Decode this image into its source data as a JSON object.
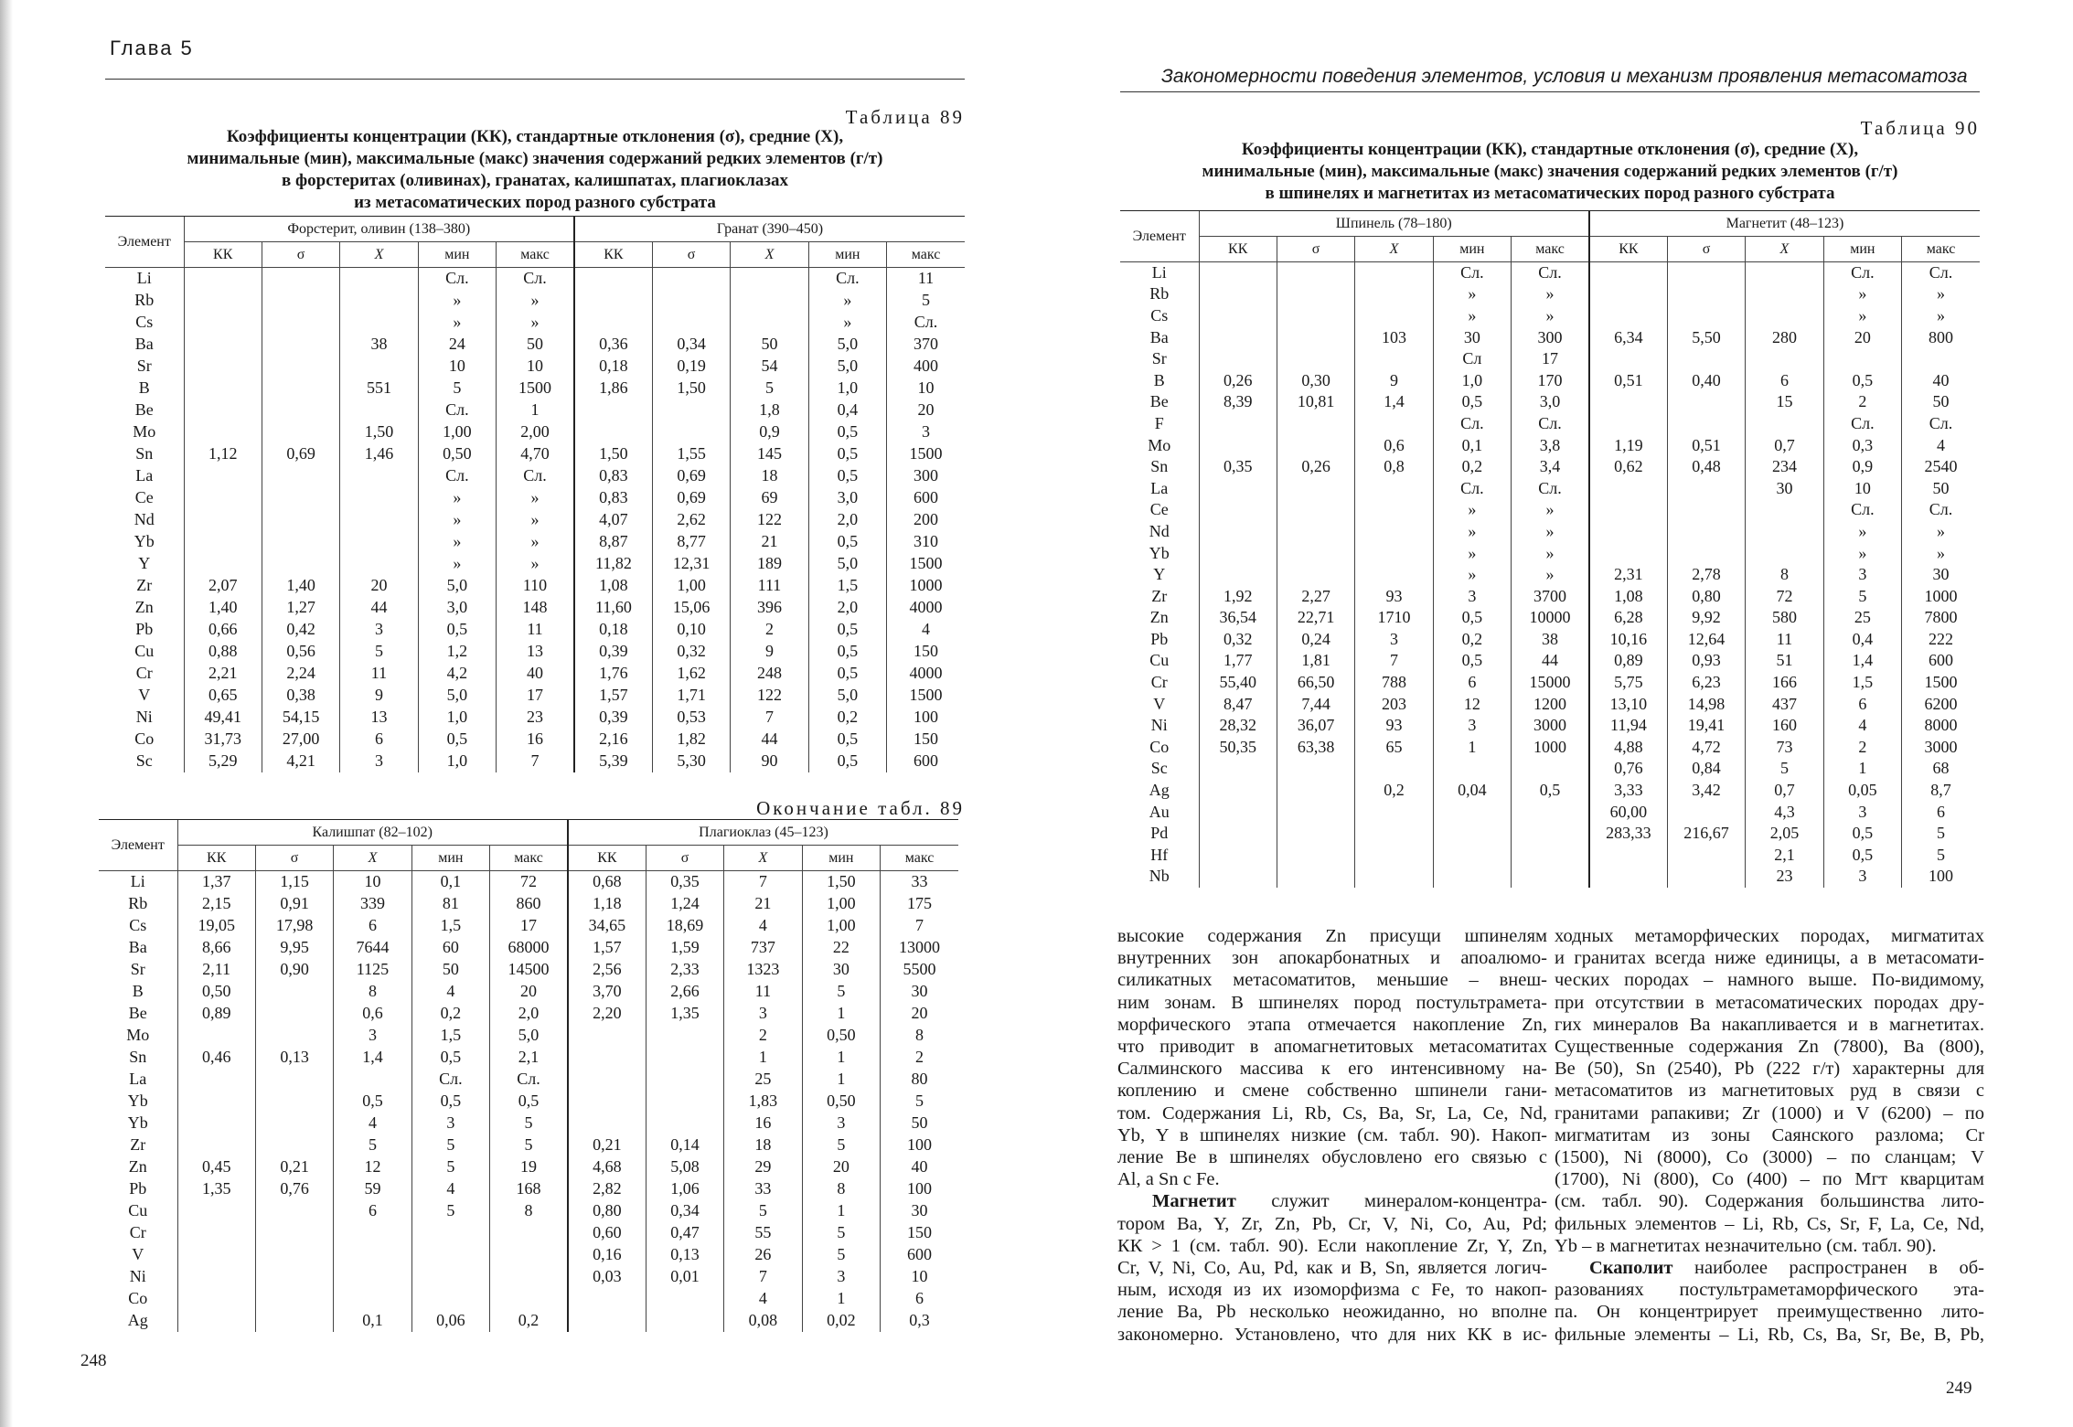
{
  "left_page": {
    "running_head": "Глава 5",
    "page_number": "248",
    "table89": {
      "caption": "Таблица 89",
      "title_lines": [
        "Коэффициенты концентрации (КК), стандартные отклонения (σ), средние (X),",
        "минимальные (мин), максимальные (макс) значения содержаний редких элементов (г/т)",
        "в форстеритах (оливинах), гранатах, калишпатах, плагиоклазах",
        "из метасоматических пород разного субстрата"
      ],
      "element_header": "Элемент",
      "groups": [
        "Форстерит, оливин (138–380)",
        "Гранат (390–450)"
      ],
      "subheaders": [
        "КК",
        "σ",
        "X",
        "мин",
        "макс"
      ],
      "rows": [
        [
          "Li",
          "",
          "",
          "",
          "Сл.",
          "Сл.",
          "",
          "",
          "",
          "Сл.",
          "11"
        ],
        [
          "Rb",
          "",
          "",
          "",
          "»",
          "»",
          "",
          "",
          "",
          "»",
          "5"
        ],
        [
          "Cs",
          "",
          "",
          "",
          "»",
          "»",
          "",
          "",
          "",
          "»",
          "Сл."
        ],
        [
          "Ba",
          "",
          "",
          "38",
          "24",
          "50",
          "0,36",
          "0,34",
          "50",
          "5,0",
          "370"
        ],
        [
          "Sr",
          "",
          "",
          "",
          "10",
          "10",
          "0,18",
          "0,19",
          "54",
          "5,0",
          "400"
        ],
        [
          "B",
          "",
          "",
          "551",
          "5",
          "1500",
          "1,86",
          "1,50",
          "5",
          "1,0",
          "10"
        ],
        [
          "Be",
          "",
          "",
          "",
          "Сл.",
          "1",
          "",
          "",
          "1,8",
          "0,4",
          "20"
        ],
        [
          "Mo",
          "",
          "",
          "1,50",
          "1,00",
          "2,00",
          "",
          "",
          "0,9",
          "0,5",
          "3"
        ],
        [
          "Sn",
          "1,12",
          "0,69",
          "1,46",
          "0,50",
          "4,70",
          "1,50",
          "1,55",
          "145",
          "0,5",
          "1500"
        ],
        [
          "La",
          "",
          "",
          "",
          "Сл.",
          "Сл.",
          "0,83",
          "0,69",
          "18",
          "0,5",
          "300"
        ],
        [
          "Ce",
          "",
          "",
          "",
          "»",
          "»",
          "0,83",
          "0,69",
          "69",
          "3,0",
          "600"
        ],
        [
          "Nd",
          "",
          "",
          "",
          "»",
          "»",
          "4,07",
          "2,62",
          "122",
          "2,0",
          "200"
        ],
        [
          "Yb",
          "",
          "",
          "",
          "»",
          "»",
          "8,87",
          "8,77",
          "21",
          "0,5",
          "310"
        ],
        [
          "Y",
          "",
          "",
          "",
          "»",
          "»",
          "11,82",
          "12,31",
          "189",
          "5,0",
          "1500"
        ],
        [
          "Zr",
          "2,07",
          "1,40",
          "20",
          "5,0",
          "110",
          "1,08",
          "1,00",
          "111",
          "1,5",
          "1000"
        ],
        [
          "Zn",
          "1,40",
          "1,27",
          "44",
          "3,0",
          "148",
          "11,60",
          "15,06",
          "396",
          "2,0",
          "4000"
        ],
        [
          "Pb",
          "0,66",
          "0,42",
          "3",
          "0,5",
          "11",
          "0,18",
          "0,10",
          "2",
          "0,5",
          "4"
        ],
        [
          "Cu",
          "0,88",
          "0,56",
          "5",
          "1,2",
          "13",
          "0,39",
          "0,32",
          "9",
          "0,5",
          "150"
        ],
        [
          "Cr",
          "2,21",
          "2,24",
          "11",
          "4,2",
          "40",
          "1,76",
          "1,62",
          "248",
          "0,5",
          "4000"
        ],
        [
          "V",
          "0,65",
          "0,38",
          "9",
          "5,0",
          "17",
          "1,57",
          "1,71",
          "122",
          "5,0",
          "1500"
        ],
        [
          "Ni",
          "49,41",
          "54,15",
          "13",
          "1,0",
          "23",
          "0,39",
          "0,53",
          "7",
          "0,2",
          "100"
        ],
        [
          "Co",
          "31,73",
          "27,00",
          "6",
          "0,5",
          "16",
          "2,16",
          "1,82",
          "44",
          "0,5",
          "150"
        ],
        [
          "Sc",
          "5,29",
          "4,21",
          "3",
          "1,0",
          "7",
          "5,39",
          "5,30",
          "90",
          "0,5",
          "600"
        ]
      ]
    },
    "table89_end": {
      "caption": "Окончание табл. 89",
      "element_header": "Элемент",
      "groups": [
        "Калишпат (82–102)",
        "Плагиоклаз (45–123)"
      ],
      "subheaders": [
        "КК",
        "σ",
        "X",
        "мин",
        "макс"
      ],
      "rows": [
        [
          "Li",
          "1,37",
          "1,15",
          "10",
          "0,1",
          "72",
          "0,68",
          "0,35",
          "7",
          "1,50",
          "33"
        ],
        [
          "Rb",
          "2,15",
          "0,91",
          "339",
          "81",
          "860",
          "1,18",
          "1,24",
          "21",
          "1,00",
          "175"
        ],
        [
          "Cs",
          "19,05",
          "17,98",
          "6",
          "1,5",
          "17",
          "34,65",
          "18,69",
          "4",
          "1,00",
          "7"
        ],
        [
          "Ba",
          "8,66",
          "9,95",
          "7644",
          "60",
          "68000",
          "1,57",
          "1,59",
          "737",
          "22",
          "13000"
        ],
        [
          "Sr",
          "2,11",
          "0,90",
          "1125",
          "50",
          "14500",
          "2,56",
          "2,33",
          "1323",
          "30",
          "5500"
        ],
        [
          "B",
          "0,50",
          "",
          "8",
          "4",
          "20",
          "3,70",
          "2,66",
          "11",
          "5",
          "30"
        ],
        [
          "Be",
          "0,89",
          "",
          "0,6",
          "0,2",
          "2,0",
          "2,20",
          "1,35",
          "3",
          "1",
          "20"
        ],
        [
          "Mo",
          "",
          "",
          "3",
          "1,5",
          "5,0",
          "",
          "",
          "2",
          "0,50",
          "8"
        ],
        [
          "Sn",
          "0,46",
          "0,13",
          "1,4",
          "0,5",
          "2,1",
          "",
          "",
          "1",
          "1",
          "2"
        ],
        [
          "La",
          "",
          "",
          "",
          "Сл.",
          "Сл.",
          "",
          "",
          "25",
          "1",
          "80"
        ],
        [
          "Yb",
          "",
          "",
          "0,5",
          "0,5",
          "0,5",
          "",
          "",
          "1,83",
          "0,50",
          "5"
        ],
        [
          "Yb",
          "",
          "",
          "4",
          "3",
          "5",
          "",
          "",
          "16",
          "3",
          "50"
        ],
        [
          "Zr",
          "",
          "",
          "5",
          "5",
          "5",
          "0,21",
          "0,14",
          "18",
          "5",
          "100"
        ],
        [
          "Zn",
          "0,45",
          "0,21",
          "12",
          "5",
          "19",
          "4,68",
          "5,08",
          "29",
          "20",
          "40"
        ],
        [
          "Pb",
          "1,35",
          "0,76",
          "59",
          "4",
          "168",
          "2,82",
          "1,06",
          "33",
          "8",
          "100"
        ],
        [
          "Cu",
          "",
          "",
          "6",
          "5",
          "8",
          "0,80",
          "0,34",
          "5",
          "1",
          "30"
        ],
        [
          "Cr",
          "",
          "",
          "",
          "",
          "",
          "0,60",
          "0,47",
          "55",
          "5",
          "150"
        ],
        [
          "V",
          "",
          "",
          "",
          "",
          "",
          "0,16",
          "0,13",
          "26",
          "5",
          "600"
        ],
        [
          "Ni",
          "",
          "",
          "",
          "",
          "",
          "0,03",
          "0,01",
          "7",
          "3",
          "10"
        ],
        [
          "Co",
          "",
          "",
          "",
          "",
          "",
          "",
          "",
          "4",
          "1",
          "6"
        ],
        [
          "Ag",
          "",
          "",
          "0,1",
          "0,06",
          "0,2",
          "",
          "",
          "0,08",
          "0,02",
          "0,3"
        ]
      ]
    }
  },
  "right_page": {
    "running_head": "Закономерности поведения элементов, условия и механизм проявления метасоматоза",
    "page_number": "249",
    "table90": {
      "caption": "Таблица 90",
      "title_lines": [
        "Коэффициенты концентрации (КК), стандартные отклонения (σ), средние (X),",
        "минимальные (мин), максимальные (макс) значения содержаний редких элементов (г/т)",
        "в шпинелях и магнетитах из метасоматических пород разного субстрата"
      ],
      "element_header": "Элемент",
      "groups": [
        "Шпинель (78–180)",
        "Магнетит (48–123)"
      ],
      "subheaders": [
        "КК",
        "σ",
        "X",
        "мин",
        "макс"
      ],
      "rows": [
        [
          "Li",
          "",
          "",
          "",
          "Сл.",
          "Сл.",
          "",
          "",
          "",
          "Сл.",
          "Сл."
        ],
        [
          "Rb",
          "",
          "",
          "",
          "»",
          "»",
          "",
          "",
          "",
          "»",
          "»"
        ],
        [
          "Cs",
          "",
          "",
          "",
          "»",
          "»",
          "",
          "",
          "",
          "»",
          "»"
        ],
        [
          "Ba",
          "",
          "",
          "103",
          "30",
          "300",
          "6,34",
          "5,50",
          "280",
          "20",
          "800"
        ],
        [
          "Sr",
          "",
          "",
          "",
          "Сл",
          "17",
          "",
          "",
          "",
          "",
          ""
        ],
        [
          "B",
          "0,26",
          "0,30",
          "9",
          "1,0",
          "170",
          "0,51",
          "0,40",
          "6",
          "0,5",
          "40"
        ],
        [
          "Be",
          "8,39",
          "10,81",
          "1,4",
          "0,5",
          "3,0",
          "",
          "",
          "15",
          "2",
          "50"
        ],
        [
          "F",
          "",
          "",
          "",
          "Сл.",
          "Сл.",
          "",
          "",
          "",
          "Сл.",
          "Сл."
        ],
        [
          "Mo",
          "",
          "",
          "0,6",
          "0,1",
          "3,8",
          "1,19",
          "0,51",
          "0,7",
          "0,3",
          "4"
        ],
        [
          "Sn",
          "0,35",
          "0,26",
          "0,8",
          "0,2",
          "3,4",
          "0,62",
          "0,48",
          "234",
          "0,9",
          "2540"
        ],
        [
          "La",
          "",
          "",
          "",
          "Сл.",
          "Сл.",
          "",
          "",
          "30",
          "10",
          "50"
        ],
        [
          "Ce",
          "",
          "",
          "",
          "»",
          "»",
          "",
          "",
          "",
          "Сл.",
          "Сл."
        ],
        [
          "Nd",
          "",
          "",
          "",
          "»",
          "»",
          "",
          "",
          "",
          "»",
          "»"
        ],
        [
          "Yb",
          "",
          "",
          "",
          "»",
          "»",
          "",
          "",
          "",
          "»",
          "»"
        ],
        [
          "Y",
          "",
          "",
          "",
          "»",
          "»",
          "2,31",
          "2,78",
          "8",
          "3",
          "30"
        ],
        [
          "Zr",
          "1,92",
          "2,27",
          "93",
          "3",
          "3700",
          "1,08",
          "0,80",
          "72",
          "5",
          "1000"
        ],
        [
          "Zn",
          "36,54",
          "22,71",
          "1710",
          "0,5",
          "10000",
          "6,28",
          "9,92",
          "580",
          "25",
          "7800"
        ],
        [
          "Pb",
          "0,32",
          "0,24",
          "3",
          "0,2",
          "38",
          "10,16",
          "12,64",
          "11",
          "0,4",
          "222"
        ],
        [
          "Cu",
          "1,77",
          "1,81",
          "7",
          "0,5",
          "44",
          "0,89",
          "0,93",
          "51",
          "1,4",
          "600"
        ],
        [
          "Cr",
          "55,40",
          "66,50",
          "788",
          "6",
          "15000",
          "5,75",
          "6,23",
          "166",
          "1,5",
          "1500"
        ],
        [
          "V",
          "8,47",
          "7,44",
          "203",
          "12",
          "1200",
          "13,10",
          "14,98",
          "437",
          "6",
          "6200"
        ],
        [
          "Ni",
          "28,32",
          "36,07",
          "93",
          "3",
          "3000",
          "11,94",
          "19,41",
          "160",
          "4",
          "8000"
        ],
        [
          "Co",
          "50,35",
          "63,38",
          "65",
          "1",
          "1000",
          "4,88",
          "4,72",
          "73",
          "2",
          "3000"
        ],
        [
          "Sc",
          "",
          "",
          "",
          "",
          "",
          "0,76",
          "0,84",
          "5",
          "1",
          "68"
        ],
        [
          "Ag",
          "",
          "",
          "0,2",
          "0,04",
          "0,5",
          "3,33",
          "3,42",
          "0,7",
          "0,05",
          "8,7"
        ],
        [
          "Au",
          "",
          "",
          "",
          "",
          "",
          "60,00",
          "",
          "4,3",
          "3",
          "6"
        ],
        [
          "Pd",
          "",
          "",
          "",
          "",
          "",
          "283,33",
          "216,67",
          "2,05",
          "0,5",
          "5"
        ],
        [
          "Hf",
          "",
          "",
          "",
          "",
          "",
          "",
          "",
          "2,1",
          "0,5",
          "5"
        ],
        [
          "Nb",
          "",
          "",
          "",
          "",
          "",
          "",
          "",
          "23",
          "3",
          "100"
        ]
      ]
    },
    "text_columns": [
      [
        {
          "t": "высокие содержания Zn присущи шпинелям"
        },
        {
          "t": "внутренних зон апокарбонатных и апоалюмо-"
        },
        {
          "t": "силикатных метасоматитов, меньшие – внеш-"
        },
        {
          "t": "ним зонам. В шпинелях пород постультрамета-"
        },
        {
          "t": "морфического этапа отмечается накопление Zn,"
        },
        {
          "t": "что приводит в апомагнетитовых метасоматитах"
        },
        {
          "t": "Салминского массива к его интенсивному на-"
        },
        {
          "t": "коплению и смене собственно шпинели гани-"
        },
        {
          "t": "том. Содержания Li, Rb, Cs, Ba, Sr, La, Ce, Nd,"
        },
        {
          "t": "Yb, Y в шпинелях низкие (см. табл. 90). Накоп-"
        },
        {
          "t": "ление Be в шпинелях обусловлено его связью с"
        },
        {
          "t": "Al, a Sn c Fe.",
          "end": true
        },
        {
          "b": "Магнетит",
          "t": " служит минералом-концентра-"
        },
        {
          "t": "тором Ba, Y, Zr, Zn, Pb, Cr, V, Ni, Co, Au, Pd;"
        },
        {
          "t": "КК > 1 (см. табл. 90). Если накопление Zr, Y, Zn,"
        },
        {
          "t": "Cr, V, Ni, Co, Au, Pd, как и B, Sn, является логич-"
        },
        {
          "t": "ным, исходя из их изоморфизма с Fe, то накоп-"
        },
        {
          "t": "ление Ba, Pb несколько неожиданно, но вполне"
        },
        {
          "t": "закономерно. Установлено, что для них КК в ис-"
        }
      ],
      [
        {
          "t": "ходных метаморфических породах, мигматитах"
        },
        {
          "t": "и гранитах всегда ниже единицы, а в метасомати-"
        },
        {
          "t": "ческих породах – намного выше. По-видимому,"
        },
        {
          "t": "при отсутствии в метасоматических породах дру-"
        },
        {
          "t": "гих минералов Ba накапливается и в магнетитах."
        },
        {
          "t": "Существенные содержания Zn (7800), Ba (800),"
        },
        {
          "t": "Be (50), Sn (2540), Pb (222 г/т) характерны для"
        },
        {
          "t": "метасоматитов из магнетитовых руд в связи с"
        },
        {
          "t": "гранитами рапакиви; Zr (1000) и V (6200) – по"
        },
        {
          "t": "мигматитам из зоны Саянского разлома; Cr"
        },
        {
          "t": "(1500), Ni (8000), Co (3000) – по сланцам; V"
        },
        {
          "t": "(1700), Ni (800), Co (400) – по Мгт кварцитам"
        },
        {
          "t": "(см. табл. 90). Содержания большинства лито-"
        },
        {
          "t": "фильных элементов – Li, Rb, Cs, Sr, F, La, Ce, Nd,"
        },
        {
          "t": "Yb – в магнетитах незначительно (см. табл. 90).",
          "end": true
        },
        {
          "b": "Скаполит",
          "t": " наиболее распространен в об-"
        },
        {
          "t": "разованиях постультраметаморфического эта-"
        },
        {
          "t": "па. Он концентрирует преимущественно лито-"
        },
        {
          "t": "фильные элементы – Li, Rb, Cs, Ba, Sr, Be, B, Pb,"
        }
      ]
    ]
  }
}
